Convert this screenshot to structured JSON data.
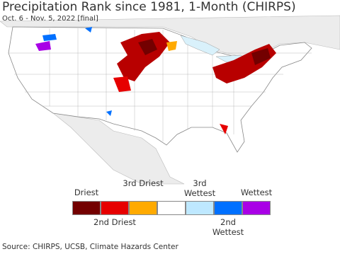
{
  "header": {
    "title": "Precipitation Rank since 1981, 1-Month (CHIRPS)",
    "subtitle": "Oct. 6 - Nov. 5, 2022 [final]"
  },
  "legend": {
    "colors": [
      "#730000",
      "#e60000",
      "#ffaa00",
      "#ffffff",
      "#bee8ff",
      "#0070ff",
      "#a900e6"
    ],
    "top_labels": [
      "Driest",
      "3rd Driest",
      "3rd Wettest",
      "Wettest"
    ],
    "bottom_labels": [
      "2nd Driest",
      "2nd Wettest"
    ]
  },
  "footer": {
    "source": "Source: CHIRPS, UCSB, Climate Hazards Center"
  }
}
